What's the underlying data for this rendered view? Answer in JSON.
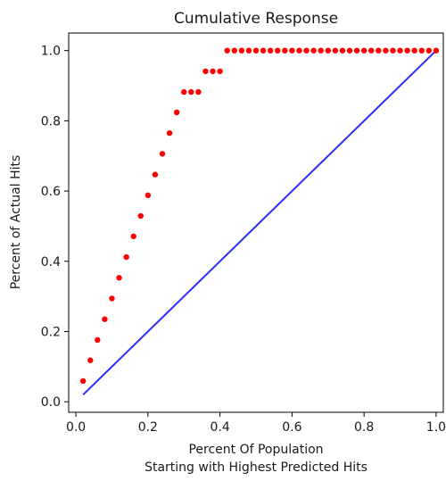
{
  "chart_data": {
    "type": "scatter",
    "title": "Cumulative Response",
    "xlabel": "Percent Of Population",
    "xlabel2": "Starting with Highest Predicted Hits",
    "ylabel": "Percent of Actual Hits",
    "xlim": [
      -0.02,
      1.02
    ],
    "ylim": [
      -0.03,
      1.05
    ],
    "xticks": [
      0.0,
      0.2,
      0.4,
      0.6,
      0.8,
      1.0
    ],
    "xtick_labels": [
      "0.0",
      "0.2",
      "0.4",
      "0.6",
      "0.8",
      "1.0"
    ],
    "yticks": [
      0.0,
      0.2,
      0.4,
      0.6,
      0.8,
      1.0
    ],
    "ytick_labels": [
      "0.0",
      "0.2",
      "0.4",
      "0.6",
      "0.8",
      "1.0"
    ],
    "grid": false,
    "series": [
      {
        "type": "scatter",
        "color": "#ff0000",
        "x": [
          0.02,
          0.04,
          0.06,
          0.08,
          0.1,
          0.12,
          0.14,
          0.16,
          0.18,
          0.2,
          0.22,
          0.24,
          0.26,
          0.28,
          0.3,
          0.32,
          0.34,
          0.36,
          0.38,
          0.4,
          0.42,
          0.44,
          0.46,
          0.48,
          0.5,
          0.52,
          0.54,
          0.56,
          0.58,
          0.6,
          0.62,
          0.64,
          0.66,
          0.68,
          0.7,
          0.72,
          0.74,
          0.76,
          0.78,
          0.8,
          0.82,
          0.84,
          0.86,
          0.88,
          0.9,
          0.92,
          0.94,
          0.96,
          0.98,
          1.0
        ],
        "y": [
          0.059,
          0.118,
          0.176,
          0.235,
          0.294,
          0.353,
          0.412,
          0.471,
          0.529,
          0.588,
          0.647,
          0.706,
          0.765,
          0.824,
          0.882,
          0.882,
          0.882,
          0.941,
          0.941,
          0.941,
          1.0,
          1.0,
          1.0,
          1.0,
          1.0,
          1.0,
          1.0,
          1.0,
          1.0,
          1.0,
          1.0,
          1.0,
          1.0,
          1.0,
          1.0,
          1.0,
          1.0,
          1.0,
          1.0,
          1.0,
          1.0,
          1.0,
          1.0,
          1.0,
          1.0,
          1.0,
          1.0,
          1.0,
          1.0,
          1.0
        ]
      },
      {
        "type": "line",
        "color": "#2b2bff",
        "x": [
          0.02,
          1.0
        ],
        "y": [
          0.02,
          1.0
        ]
      }
    ]
  }
}
